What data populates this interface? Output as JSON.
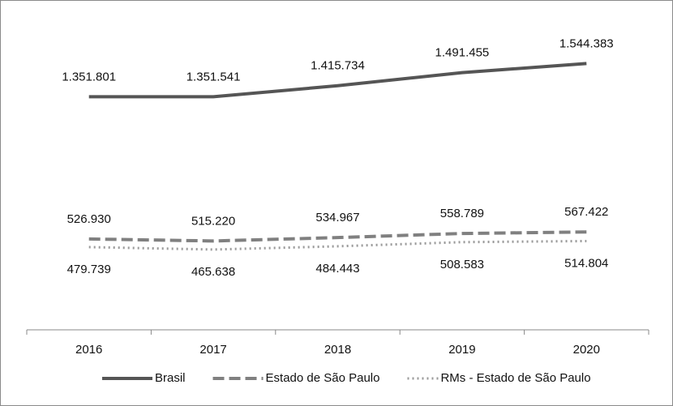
{
  "chart_data": {
    "type": "line",
    "categories": [
      "2016",
      "2017",
      "2018",
      "2019",
      "2020"
    ],
    "series": [
      {
        "name": "Brasil",
        "color": "#555555",
        "style": "solid",
        "values": [
          1351801,
          1351541,
          1415734,
          1491455,
          1544383
        ],
        "value_labels": [
          "1.351.801",
          "1.351.541",
          "1.415.734",
          "1.491.455",
          "1.544.383"
        ]
      },
      {
        "name": "Estado de São Paulo",
        "color": "#808080",
        "style": "dashed",
        "values": [
          526930,
          515220,
          534967,
          558789,
          567422
        ],
        "value_labels": [
          "526.930",
          "515.220",
          "534.967",
          "558.789",
          "567.422"
        ]
      },
      {
        "name": "RMs - Estado de São Paulo",
        "color": "#9a9a9a",
        "style": "dotted",
        "values": [
          479739,
          465638,
          484443,
          508583,
          514804
        ],
        "value_labels": [
          "479.739",
          "465.638",
          "484.443",
          "508.583",
          "514.804"
        ]
      }
    ],
    "ylim": [
      0,
      1800000
    ],
    "legend": "bottom"
  }
}
